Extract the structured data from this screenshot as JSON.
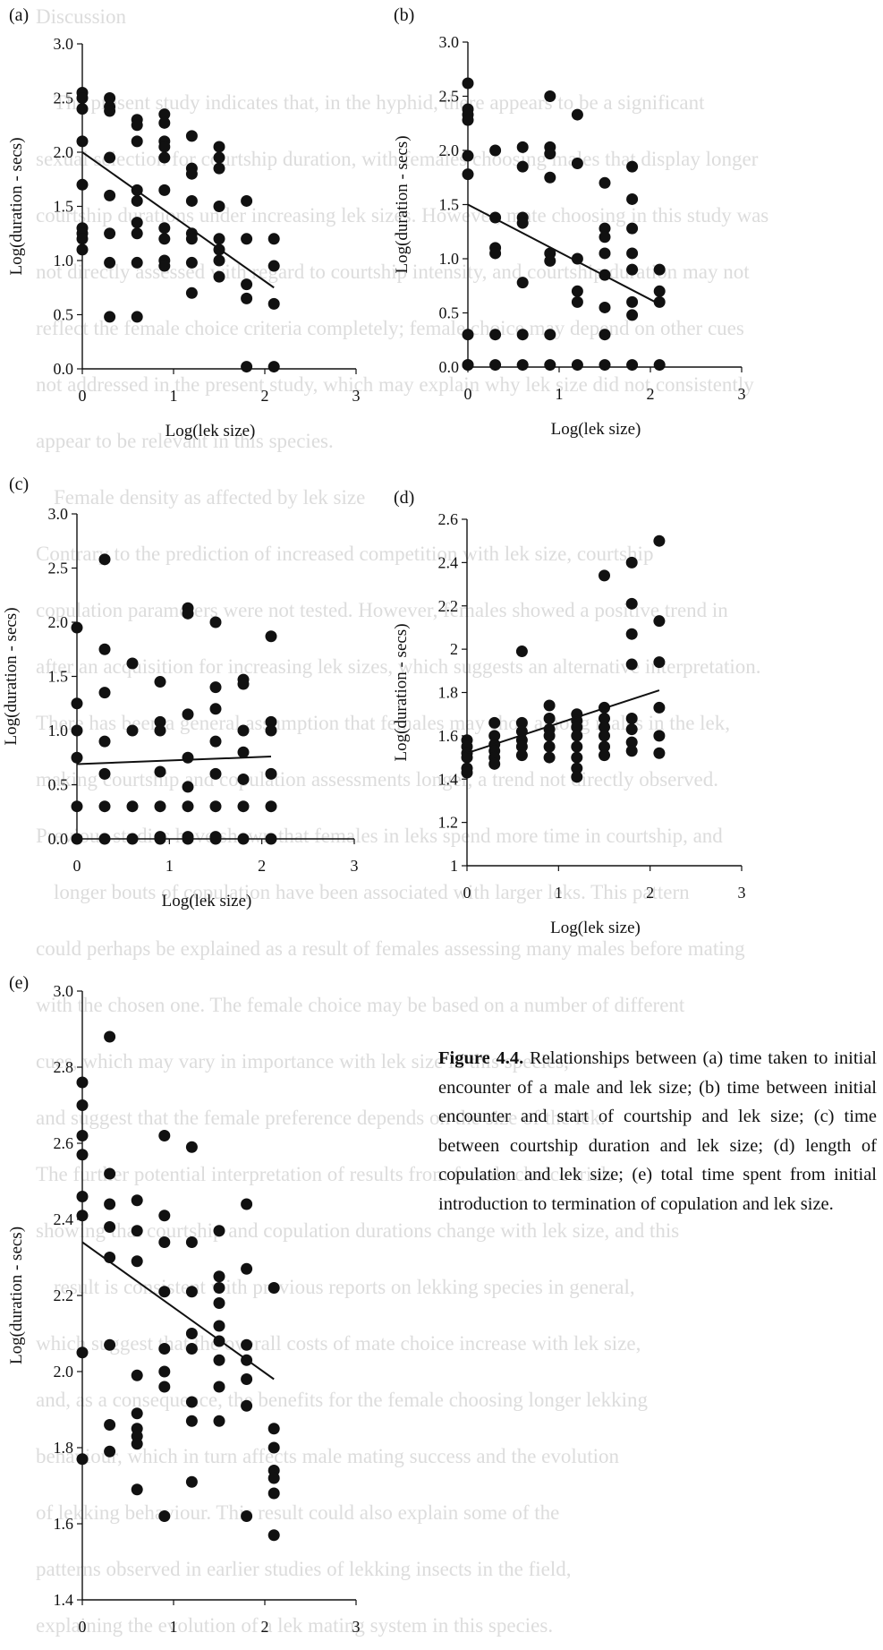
{
  "page_header": "Discussion",
  "background_text": [
    "The present study indicates that, in the hyphid, there appears to be a significant",
    "sexual selection for courtship duration, with females choosing males that display longer",
    "courtship durations under increasing lek sizes. However, mate choosing in this study was",
    "not directly assessed with regard to courtship intensity, and courtship duration may not",
    "reflect the female choice criteria completely; female choice may depend on other cues",
    "not addressed in the present study, which may explain why lek size did not consistently",
    "appear to be relevant in this species.",
    "Female density as affected by lek size",
    "Contrary to the prediction of increased competition with lek size, courtship",
    "copulation parameters were not tested. However, females showed a positive trend in",
    "after an acquisition for increasing lek sizes, which suggests an alternative interpretation.",
    "There has been a general assumption that females may shop among males in the lek,",
    "making courtship and copulation assessments longer, a trend not directly observed.",
    "Previous studies have shown that females in leks spend more time in courtship, and",
    "longer bouts of copulation have been associated with larger leks. This pattern",
    "could perhaps be explained as a result of females assessing many males before mating",
    "with the chosen one. The female choice may be based on a number of different",
    "cues, which may vary in importance with lek size in this species,",
    "and suggest that the female preference depends on the size of the lek.",
    "The further potential interpretation of results from female choice trials",
    "showing that courtship and copulation durations change with lek size, and this",
    "result is consistent with previous reports on lekking species in general,",
    "which suggest that the overall costs of mate choice increase with lek size,",
    "and, as a consequence, the benefits for the female choosing longer lekking",
    "behaviour, which in turn affects male mating success and the evolution",
    "of lekking behaviour. This result could also explain some of the",
    "patterns observed in earlier studies of lekking insects in the field,",
    "explaining the evolution of a lek mating system in this species."
  ],
  "panels": [
    {
      "letter": "(a)",
      "chart_data": {
        "type": "scatter",
        "xlabel": "Log(lek size)",
        "ylabel": "Log(duration - secs)",
        "xlim": [
          0,
          3
        ],
        "ylim": [
          0.0,
          3.0
        ],
        "x_ticks": [
          "0",
          "1",
          "2",
          "3"
        ],
        "y_ticks": [
          "0.0",
          "0.5",
          "1.0",
          "1.5",
          "2.0",
          "2.5",
          "3.0"
        ],
        "fit_line": {
          "x": [
            0,
            2.1
          ],
          "y": [
            2.0,
            0.75
          ]
        },
        "points": {
          "x": [
            0,
            0,
            0,
            0,
            0,
            0,
            0,
            0,
            0,
            0.3,
            0.3,
            0.3,
            0.3,
            0.3,
            0.3,
            0.3,
            0.3,
            0.6,
            0.6,
            0.6,
            0.6,
            0.6,
            0.6,
            0.6,
            0.6,
            0.6,
            0.9,
            0.9,
            0.9,
            0.9,
            0.9,
            0.9,
            0.9,
            0.9,
            0.9,
            0.9,
            1.2,
            1.2,
            1.2,
            1.2,
            1.2,
            1.2,
            1.2,
            1.2,
            1.5,
            1.5,
            1.5,
            1.5,
            1.5,
            1.5,
            1.5,
            1.5,
            1.8,
            1.8,
            1.8,
            1.8,
            1.8,
            2.1,
            2.1,
            2.1,
            2.1
          ],
          "y": [
            2.55,
            2.5,
            2.4,
            2.1,
            1.7,
            1.3,
            1.25,
            1.2,
            1.1,
            2.5,
            2.42,
            2.38,
            1.95,
            1.6,
            1.25,
            0.98,
            0.48,
            2.3,
            2.25,
            2.1,
            1.65,
            1.55,
            1.35,
            1.25,
            0.98,
            0.48,
            2.35,
            2.27,
            2.1,
            2.05,
            1.95,
            1.65,
            1.3,
            1.2,
            1.0,
            0.95,
            2.15,
            1.85,
            1.8,
            1.55,
            1.25,
            1.2,
            0.98,
            0.7,
            2.05,
            1.95,
            1.85,
            1.5,
            1.2,
            1.0,
            0.85,
            1.1,
            1.55,
            1.2,
            0.78,
            0.65,
            0.02,
            1.2,
            0.95,
            0.6,
            0.02
          ]
        }
      }
    },
    {
      "letter": "(b)",
      "chart_data": {
        "type": "scatter",
        "xlabel": "Log(lek size)",
        "ylabel": "Log(duration - secs)",
        "xlim": [
          0,
          3
        ],
        "ylim": [
          0.0,
          3.0
        ],
        "x_ticks": [
          "0",
          "1",
          "2",
          "3"
        ],
        "y_ticks": [
          "0.0",
          "0.5",
          "1.0",
          "1.5",
          "2.0",
          "2.5",
          "3.0"
        ],
        "fit_line": {
          "x": [
            0,
            2.1
          ],
          "y": [
            1.5,
            0.58
          ]
        },
        "points": {
          "x": [
            0,
            0,
            0,
            0,
            0,
            0,
            0,
            0,
            0,
            0.3,
            0.3,
            0.3,
            0.3,
            0.3,
            0.3,
            0.6,
            0.6,
            0.6,
            0.6,
            0.6,
            0.6,
            0.6,
            0.9,
            0.9,
            0.9,
            0.9,
            0.9,
            0.9,
            0.9,
            0.9,
            1.2,
            1.2,
            1.2,
            1.2,
            1.2,
            1.2,
            1.5,
            1.5,
            1.5,
            1.5,
            1.5,
            1.5,
            1.5,
            1.5,
            1.8,
            1.8,
            1.8,
            1.8,
            1.8,
            1.8,
            1.8,
            1.8,
            2.1,
            2.1,
            2.1,
            2.1
          ],
          "y": [
            2.62,
            2.38,
            2.33,
            2.28,
            1.95,
            1.78,
            0.3,
            0.02,
            0.02,
            2.0,
            1.38,
            1.1,
            1.05,
            0.3,
            0.02,
            2.03,
            1.85,
            1.38,
            1.33,
            0.78,
            0.3,
            0.02,
            2.5,
            2.03,
            1.97,
            1.75,
            1.05,
            0.98,
            0.3,
            0.02,
            2.33,
            1.88,
            1.0,
            0.7,
            0.6,
            0.02,
            1.7,
            1.28,
            1.2,
            1.05,
            0.85,
            0.55,
            0.3,
            0.02,
            1.85,
            1.55,
            1.28,
            1.05,
            0.9,
            0.6,
            0.48,
            0.02,
            0.9,
            0.7,
            0.6,
            0.02
          ]
        }
      }
    },
    {
      "letter": "(c)",
      "chart_data": {
        "type": "scatter",
        "xlabel": "Log(lek size)",
        "ylabel": "Log(duration - secs)",
        "xlim": [
          0,
          3
        ],
        "ylim": [
          0.0,
          3.0
        ],
        "x_ticks": [
          "0",
          "1",
          "2",
          "3"
        ],
        "y_ticks": [
          "0.0",
          "0.5",
          "1.0",
          "1.5",
          "2.0",
          "2.5",
          "3.0"
        ],
        "fit_line": {
          "x": [
            0,
            2.1
          ],
          "y": [
            0.69,
            0.76
          ]
        },
        "points": {
          "x": [
            0,
            0,
            0,
            0,
            0,
            0,
            0.3,
            0.3,
            0.3,
            0.3,
            0.3,
            0.3,
            0.3,
            0.6,
            0.6,
            0.6,
            0.6,
            0.9,
            0.9,
            0.9,
            0.9,
            0.9,
            0.9,
            0.9,
            1.2,
            1.2,
            1.2,
            1.2,
            1.2,
            1.2,
            1.2,
            1.2,
            1.5,
            1.5,
            1.5,
            1.5,
            1.5,
            1.5,
            1.5,
            1.5,
            1.8,
            1.8,
            1.8,
            1.8,
            1.8,
            1.8,
            1.8,
            2.1,
            2.1,
            2.1,
            2.1,
            2.1,
            2.1
          ],
          "y": [
            1.95,
            1.25,
            1.0,
            0.75,
            0.3,
            0.0,
            2.58,
            1.75,
            1.35,
            0.9,
            0.6,
            0.3,
            0.0,
            1.62,
            1.0,
            0.3,
            0.0,
            1.45,
            1.08,
            1.0,
            0.62,
            0.3,
            0.02,
            0.0,
            2.13,
            2.08,
            1.15,
            0.75,
            0.48,
            0.3,
            0.02,
            0.0,
            2.0,
            1.4,
            1.2,
            0.9,
            0.6,
            0.3,
            0.02,
            0.0,
            1.47,
            1.43,
            1.0,
            0.8,
            0.55,
            0.3,
            0.0,
            1.87,
            1.08,
            1.0,
            0.6,
            0.3,
            0.0
          ]
        }
      }
    },
    {
      "letter": "(d)",
      "chart_data": {
        "type": "scatter",
        "xlabel": "Log(lek size)",
        "ylabel": "Log(duration - secs)",
        "xlim": [
          0,
          3
        ],
        "ylim": [
          1,
          2.6
        ],
        "x_ticks": [
          "0",
          "1",
          "2",
          "3"
        ],
        "y_ticks": [
          "1",
          "1.2",
          "1.4",
          "1.6",
          "1.8",
          "2",
          "2.2",
          "2.4",
          "2.6"
        ],
        "fit_line": {
          "x": [
            0,
            2.1
          ],
          "y": [
            1.52,
            1.81
          ]
        },
        "points": {
          "x": [
            0,
            0,
            0,
            0,
            0,
            0,
            0.3,
            0.3,
            0.3,
            0.3,
            0.3,
            0.3,
            0.6,
            0.6,
            0.6,
            0.6,
            0.6,
            0.6,
            0.9,
            0.9,
            0.9,
            0.9,
            0.9,
            0.9,
            1.2,
            1.2,
            1.2,
            1.2,
            1.2,
            1.2,
            1.2,
            1.2,
            1.5,
            1.5,
            1.5,
            1.5,
            1.5,
            1.5,
            1.5,
            1.8,
            1.8,
            1.8,
            1.8,
            1.8,
            1.8,
            1.8,
            1.8,
            2.1,
            2.1,
            2.1,
            2.1,
            2.1,
            2.1
          ],
          "y": [
            1.58,
            1.55,
            1.52,
            1.5,
            1.45,
            1.43,
            1.66,
            1.6,
            1.56,
            1.53,
            1.5,
            1.47,
            1.99,
            1.66,
            1.62,
            1.58,
            1.55,
            1.51,
            1.74,
            1.68,
            1.63,
            1.6,
            1.55,
            1.5,
            1.7,
            1.67,
            1.64,
            1.6,
            1.55,
            1.5,
            1.45,
            1.41,
            2.34,
            1.73,
            1.68,
            1.64,
            1.6,
            1.55,
            1.51,
            2.4,
            2.21,
            2.07,
            1.93,
            1.68,
            1.63,
            1.57,
            1.53,
            2.5,
            2.13,
            1.94,
            1.73,
            1.6,
            1.52
          ]
        }
      }
    },
    {
      "letter": "(e)",
      "chart_data": {
        "type": "scatter",
        "xlabel": "Log(lek size)",
        "ylabel": "Log(duration - secs)",
        "xlim": [
          0,
          3
        ],
        "ylim": [
          1.4,
          3.0
        ],
        "x_ticks": [
          "0",
          "1",
          "2",
          "3"
        ],
        "y_ticks": [
          "1.4",
          "1.6",
          "1.8",
          "2.0",
          "2.2",
          "2.4",
          "2.6",
          "2.8",
          "3.0"
        ],
        "fit_line": {
          "x": [
            0,
            2.1
          ],
          "y": [
            2.34,
            1.98
          ]
        },
        "points": {
          "x": [
            0,
            0,
            0,
            0,
            0,
            0,
            0,
            0,
            0.3,
            0.3,
            0.3,
            0.3,
            0.3,
            0.3,
            0.3,
            0.3,
            0.6,
            0.6,
            0.6,
            0.6,
            0.6,
            0.6,
            0.6,
            0.6,
            0.6,
            0.9,
            0.9,
            0.9,
            0.9,
            0.9,
            0.9,
            0.9,
            0.9,
            1.2,
            1.2,
            1.2,
            1.2,
            1.2,
            1.2,
            1.2,
            1.2,
            1.5,
            1.5,
            1.5,
            1.5,
            1.5,
            1.5,
            1.5,
            1.5,
            1.5,
            1.8,
            1.8,
            1.8,
            1.8,
            1.8,
            1.8,
            1.8,
            2.1,
            2.1,
            2.1,
            2.1,
            2.1,
            2.1,
            2.1
          ],
          "y": [
            2.76,
            2.7,
            2.62,
            2.57,
            2.46,
            2.41,
            2.05,
            1.77,
            2.88,
            2.52,
            2.44,
            2.38,
            2.3,
            2.07,
            1.86,
            1.79,
            2.45,
            2.37,
            2.29,
            1.99,
            1.89,
            1.85,
            1.83,
            1.81,
            1.69,
            2.62,
            2.41,
            2.34,
            2.21,
            2.06,
            2.0,
            1.96,
            1.62,
            2.59,
            2.34,
            2.21,
            2.1,
            2.06,
            1.92,
            1.87,
            1.71,
            2.37,
            2.25,
            2.22,
            2.18,
            2.12,
            2.08,
            2.03,
            1.96,
            1.87,
            2.44,
            2.27,
            2.07,
            2.03,
            1.98,
            1.91,
            1.62,
            2.22,
            1.85,
            1.8,
            1.74,
            1.72,
            1.68,
            1.57
          ]
        }
      }
    }
  ],
  "caption": {
    "label": "Figure 4.4.",
    "text": "Relationships between (a) time taken to initial encounter of a male and lek size; (b) time between initial encounter and start of courtship and lek size; (c) time between courtship duration and lek size; (d) length of copulation and lek size; (e) total time spent from initial introduction to termination of copulation and lek size."
  }
}
